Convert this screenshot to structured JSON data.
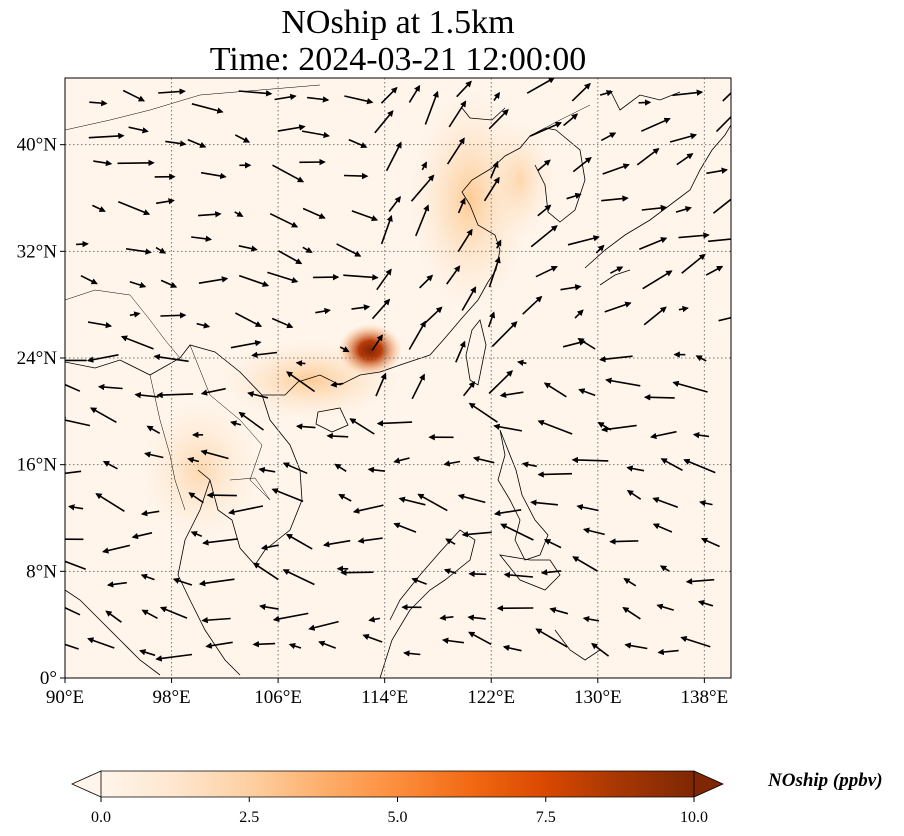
{
  "title": {
    "line1": "NOship at 1.5km",
    "line2": "Time: 2024-03-21 12:00:00"
  },
  "map": {
    "projection": "PlateCarree",
    "lon_range": [
      90,
      140
    ],
    "lat_range": [
      0,
      45
    ],
    "gridlines": true,
    "coastlines": true,
    "borders": true,
    "wind_vectors": true,
    "lat_ticks": [
      {
        "value": 0,
        "label": "0°"
      },
      {
        "value": 8,
        "label": "8°N"
      },
      {
        "value": 16,
        "label": "16°N"
      },
      {
        "value": 24,
        "label": "24°N"
      },
      {
        "value": 32,
        "label": "32°N"
      },
      {
        "value": 40,
        "label": "40°N"
      }
    ],
    "lon_ticks": [
      {
        "value": 90,
        "label": "90°E"
      },
      {
        "value": 98,
        "label": "98°E"
      },
      {
        "value": 106,
        "label": "106°E"
      },
      {
        "value": 114,
        "label": "114°E"
      },
      {
        "value": 122,
        "label": "122°E"
      },
      {
        "value": 130,
        "label": "130°E"
      },
      {
        "value": 138,
        "label": "138°E"
      }
    ],
    "hotspot": {
      "lon": 113.6,
      "lat": 24.5,
      "value_ppbv": 10
    }
  },
  "colorbar": {
    "label": "NOship (ppbv)",
    "min": 0,
    "max": 10,
    "extend": "both",
    "colormap": [
      "#fff5eb",
      "#fee6ce",
      "#fdd0a2",
      "#fdae6b",
      "#fd8d3c",
      "#f16913",
      "#d94801",
      "#a63603",
      "#7f2704"
    ],
    "ticks": [
      {
        "value": 0,
        "label": "0.0"
      },
      {
        "value": 2.5,
        "label": "2.5"
      },
      {
        "value": 5,
        "label": "5.0"
      },
      {
        "value": 7.5,
        "label": "7.5"
      },
      {
        "value": 10,
        "label": "10.0"
      }
    ]
  }
}
